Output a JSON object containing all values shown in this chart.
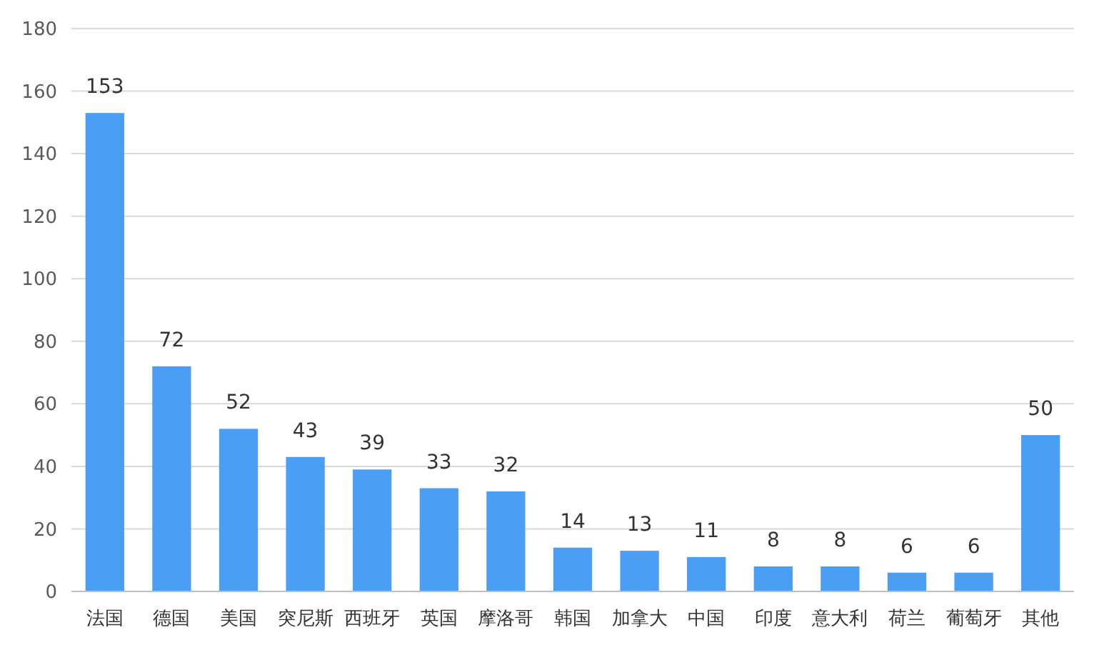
{
  "chart_data": {
    "type": "bar",
    "categories": [
      "法国",
      "德国",
      "美国",
      "突尼斯",
      "西班牙",
      "英国",
      "摩洛哥",
      "韩国",
      "加拿大",
      "中国",
      "印度",
      "意大利",
      "荷兰",
      "葡萄牙",
      "其他"
    ],
    "values": [
      153,
      72,
      52,
      43,
      39,
      33,
      32,
      14,
      13,
      11,
      8,
      8,
      6,
      6,
      50
    ],
    "color": "#4a9ff5",
    "ylim": [
      0,
      180
    ],
    "yticks": [
      0,
      20,
      40,
      60,
      80,
      100,
      120,
      140,
      160,
      180
    ],
    "grid": "y",
    "data_labels": true
  }
}
